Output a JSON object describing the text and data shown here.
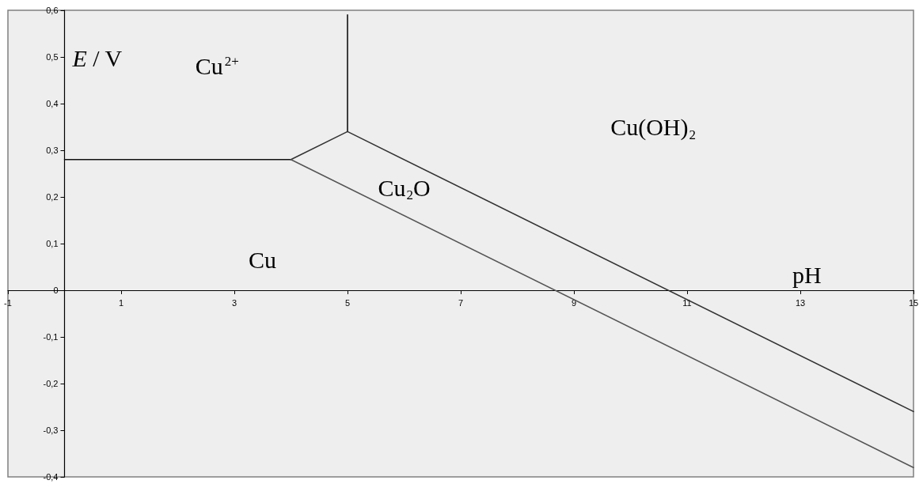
{
  "chart_data": {
    "type": "line",
    "xlabel": "pH",
    "ylabel": "E / V",
    "xlim": [
      -1,
      15
    ],
    "xticks": [
      -1,
      1,
      3,
      5,
      7,
      9,
      11,
      13,
      15
    ],
    "ylim": [
      -0.4,
      0.6
    ],
    "yticks": [
      {
        "value": -0.4,
        "label": "-0,4"
      },
      {
        "value": -0.3,
        "label": "-0,3"
      },
      {
        "value": -0.2,
        "label": "-0,2"
      },
      {
        "value": -0.1,
        "label": "-0,1"
      },
      0,
      {
        "value": 0.1,
        "label": "0,1"
      },
      {
        "value": 0.2,
        "label": "0,2"
      },
      {
        "value": 0.3,
        "label": "0,3"
      },
      {
        "value": 0.4,
        "label": "0,4"
      },
      {
        "value": 0.5,
        "label": "0,5"
      },
      {
        "value": 0.6,
        "label": "0,6"
      }
    ],
    "grid": false,
    "series": [
      {
        "color": "#111111",
        "x": [
          0,
          4
        ],
        "values": [
          0.28,
          0.28
        ]
      },
      {
        "color": "#333333",
        "x": [
          4,
          5
        ],
        "values": [
          0.28,
          0.34
        ]
      },
      {
        "color": "#111111",
        "x": [
          5,
          5
        ],
        "values": [
          0.34,
          0.59
        ]
      },
      {
        "color": "#333333",
        "x": [
          5,
          15
        ],
        "values": [
          0.34,
          -0.26
        ]
      },
      {
        "color": "#555555",
        "x": [
          4,
          15
        ],
        "values": [
          0.28,
          -0.38
        ]
      }
    ],
    "annotations": [
      "Cu$^{2+}$",
      "Cu$_{2}$O",
      "Cu(OH)$_{2}$",
      "Cu"
    ]
  }
}
